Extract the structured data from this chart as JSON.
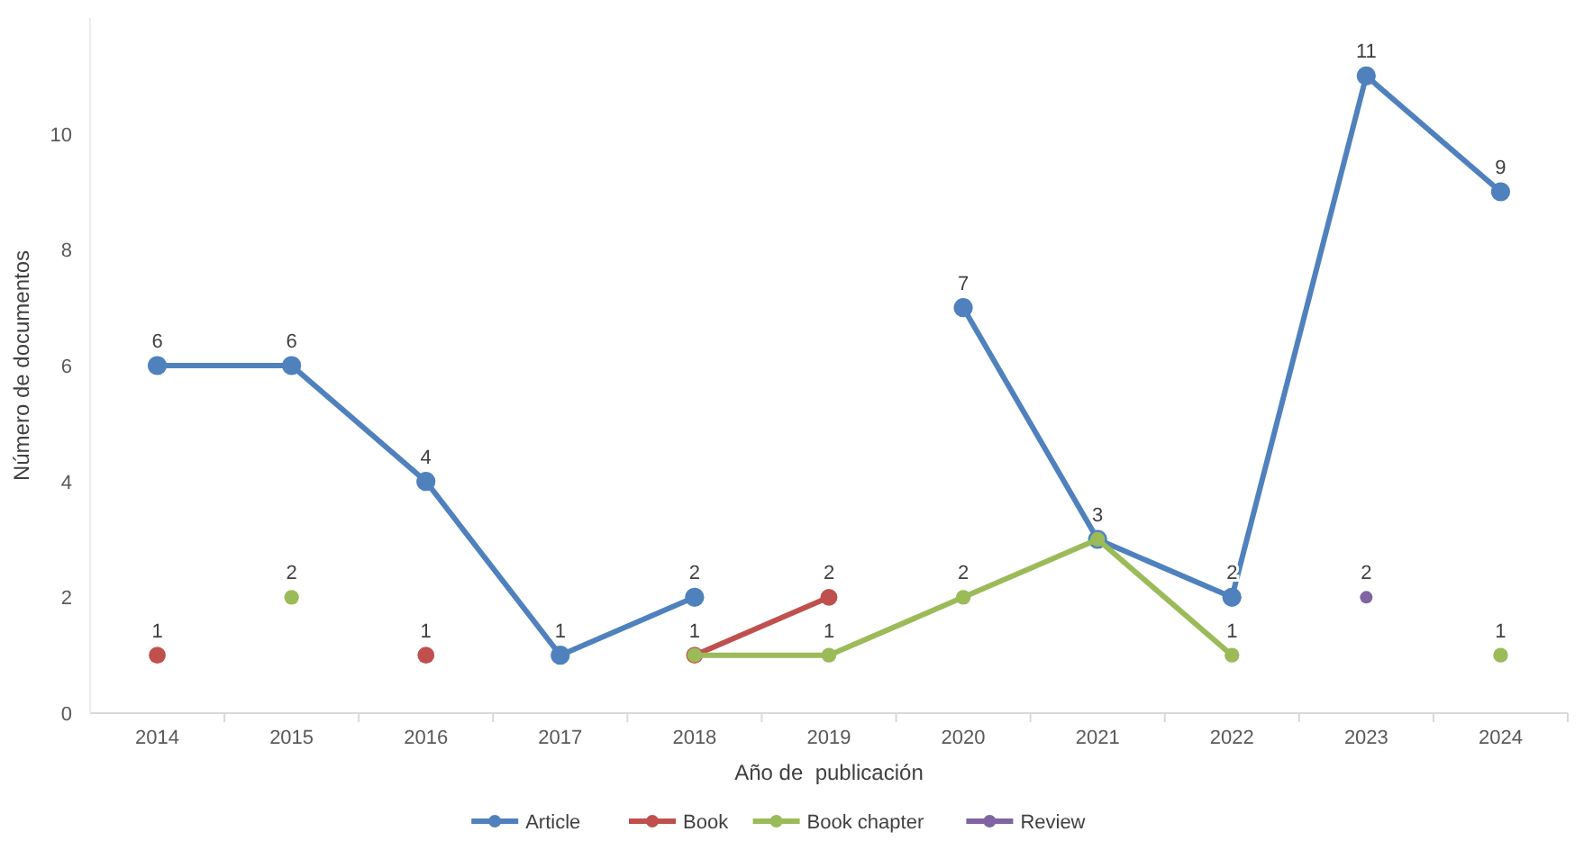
{
  "chart_data": {
    "type": "line",
    "xlabel": "Año de  publicación",
    "ylabel": "Número de documentos",
    "categories": [
      "2014",
      "2015",
      "2016",
      "2017",
      "2018",
      "2019",
      "2020",
      "2021",
      "2022",
      "2023",
      "2024"
    ],
    "ylim": [
      0,
      12
    ],
    "yticks": [
      0,
      2,
      4,
      6,
      8,
      10
    ],
    "grid": false,
    "legend": "bottom",
    "marker": "circle",
    "line_style": "solid",
    "series": [
      {
        "name": "Article",
        "color": "#4f81bd",
        "values": [
          6,
          6,
          4,
          1,
          2,
          null,
          7,
          3,
          2,
          11,
          9
        ],
        "value_labels": [
          "6",
          "6",
          "4",
          "1",
          "2",
          null,
          "7",
          "3",
          "2",
          "11",
          "9"
        ]
      },
      {
        "name": "Book",
        "color": "#c0504d",
        "values": [
          1,
          null,
          1,
          null,
          1,
          2,
          null,
          null,
          null,
          null,
          null
        ],
        "value_labels": [
          "1",
          null,
          "1",
          null,
          null,
          "2",
          null,
          null,
          null,
          null,
          null
        ]
      },
      {
        "name": "Book chapter",
        "color": "#9bbb59",
        "values": [
          null,
          2,
          null,
          null,
          1,
          1,
          2,
          3,
          1,
          null,
          1
        ],
        "value_labels": [
          null,
          "2",
          null,
          null,
          "1",
          "1",
          "2",
          null,
          "1",
          null,
          "1"
        ]
      },
      {
        "name": "Review",
        "color": "#8064a2",
        "values": [
          null,
          null,
          null,
          null,
          null,
          null,
          null,
          null,
          null,
          2,
          null
        ],
        "value_labels": [
          null,
          null,
          null,
          null,
          null,
          null,
          null,
          null,
          null,
          "2",
          null
        ]
      }
    ]
  }
}
